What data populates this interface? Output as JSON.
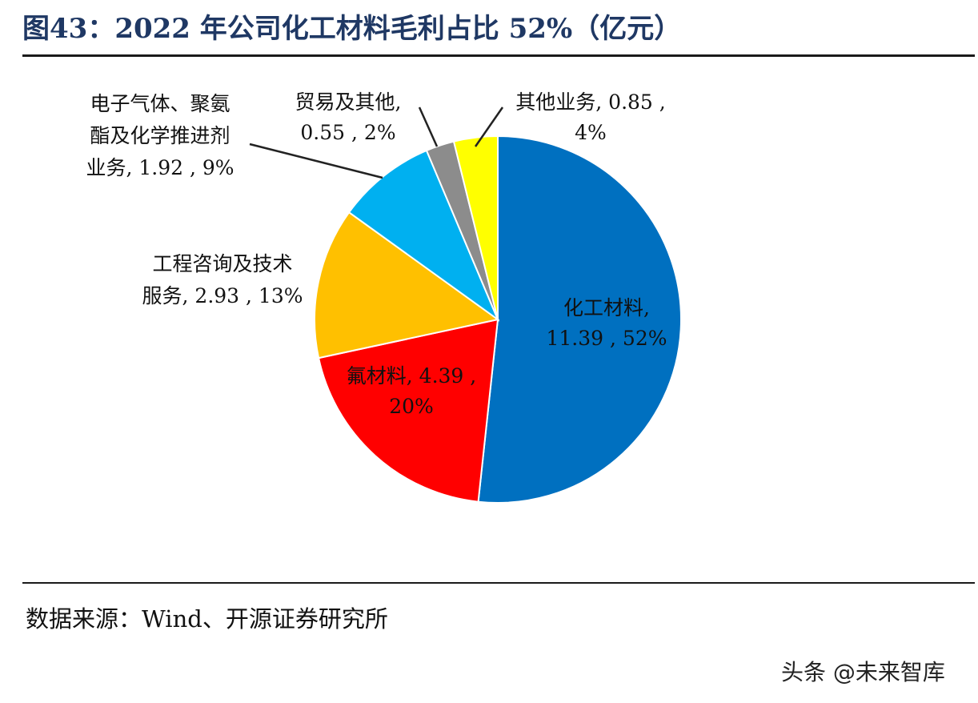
{
  "title": "图43：2022 年公司化工材料毛利占比 52%（亿元）",
  "source": "数据来源：Wind、开源证券研究所",
  "watermark": "头条 @未来智库",
  "chart_data": {
    "type": "pie",
    "title": "图43：2022 年公司化工材料毛利占比 52%（亿元）",
    "start_angle_deg": 0,
    "direction": "clockwise",
    "slices": [
      {
        "name": "化工材料",
        "value": 11.39,
        "percent": 52,
        "color": "#0070c0",
        "label_lines": [
          "化工材料,",
          "11.39 , 52%"
        ]
      },
      {
        "name": "氟材料",
        "value": 4.39,
        "percent": 20,
        "color": "#ff0000",
        "label_lines": [
          "氟材料, 4.39 ,",
          "20%"
        ]
      },
      {
        "name": "工程咨询及技术服务",
        "value": 2.93,
        "percent": 13,
        "color": "#ffc000",
        "label_lines": [
          "工程咨询及技术",
          "服务, 2.93 , 13%"
        ]
      },
      {
        "name": "电子气体、聚氨酯及化学推进剂业务",
        "value": 1.92,
        "percent": 9,
        "color": "#00b0f0",
        "label_lines": [
          "电子气体、聚氨",
          "酯及化学推进剂",
          "业务, 1.92 , 9%"
        ]
      },
      {
        "name": "贸易及其他",
        "value": 0.55,
        "percent": 2,
        "color": "#8c8c8c",
        "label_lines": [
          "贸易及其他,",
          "0.55 , 2%"
        ]
      },
      {
        "name": "其他业务",
        "value": 0.85,
        "percent": 4,
        "color": "#ffff00",
        "label_lines": [
          "其他业务, 0.85 ,",
          "4%"
        ]
      }
    ]
  }
}
